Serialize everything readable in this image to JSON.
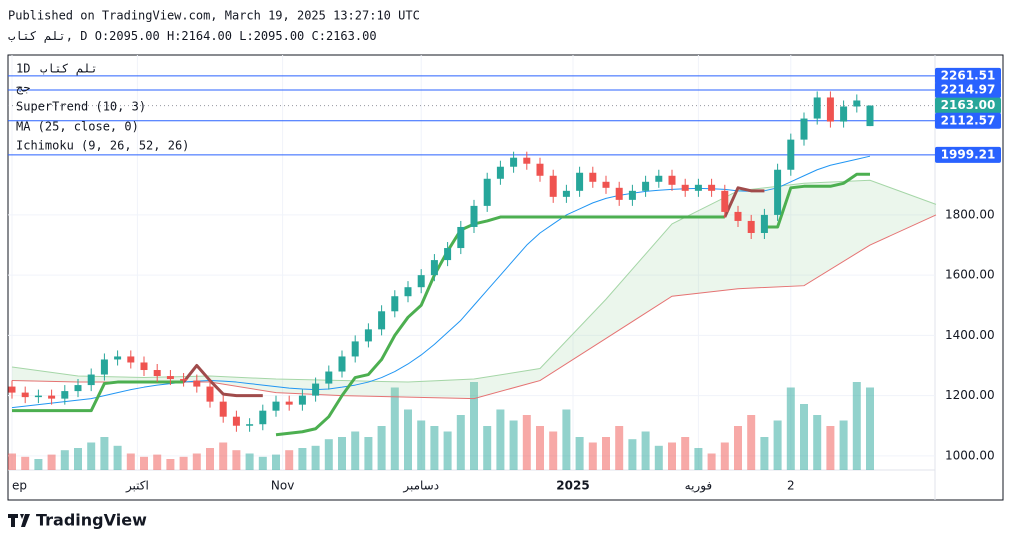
{
  "header": {
    "published": "Published on TradingView.com, March 19, 2025 13:27:10 UTC",
    "symbol": "تلم كتاب, D",
    "ohlc": [
      "O:2095.00",
      "H:2164.00",
      "L:2095.00",
      "C:2163.00"
    ]
  },
  "legend": {
    "interval": "1D",
    "symbol": "تلم كتاب",
    "exchange": "جج",
    "indicators": [
      "SuperTrend (10, 3)",
      "MA (25, close, 0)",
      "Ichimoku (9, 26, 52, 26)"
    ]
  },
  "footer": {
    "brand": "TradingView"
  },
  "chart_data": {
    "type": "candlestick",
    "open": [
      1230,
      1210,
      1195,
      1200,
      1190,
      1215,
      1235,
      1270,
      1320,
      1330,
      1310,
      1285,
      1265,
      1255,
      1250,
      1230,
      1180,
      1130,
      1100,
      1105,
      1150,
      1180,
      1170,
      1200,
      1240,
      1280,
      1330,
      1380,
      1420,
      1480,
      1530,
      1560,
      1600,
      1650,
      1690,
      1760,
      1830,
      1920,
      1960,
      1990,
      1970,
      1930,
      1860,
      1880,
      1940,
      1910,
      1890,
      1850,
      1880,
      1910,
      1930,
      1900,
      1880,
      1900,
      1880,
      1810,
      1780,
      1740,
      1800,
      1950,
      2050,
      2120,
      2190,
      2110,
      2160,
      2095
    ],
    "high": [
      1250,
      1230,
      1220,
      1220,
      1235,
      1255,
      1290,
      1340,
      1350,
      1350,
      1330,
      1305,
      1285,
      1275,
      1270,
      1250,
      1200,
      1150,
      1125,
      1170,
      1200,
      1200,
      1220,
      1260,
      1300,
      1350,
      1400,
      1440,
      1500,
      1550,
      1580,
      1620,
      1670,
      1710,
      1780,
      1850,
      1940,
      1980,
      2010,
      2010,
      1990,
      1950,
      1900,
      1960,
      1960,
      1930,
      1910,
      1900,
      1930,
      1950,
      1950,
      1920,
      1920,
      1920,
      1900,
      1830,
      1800,
      1820,
      1970,
      2070,
      2140,
      2210,
      2210,
      2180,
      2200,
      2164
    ],
    "low": [
      1190,
      1175,
      1175,
      1170,
      1170,
      1195,
      1215,
      1250,
      1300,
      1290,
      1265,
      1245,
      1235,
      1230,
      1210,
      1160,
      1110,
      1080,
      1080,
      1085,
      1130,
      1150,
      1150,
      1180,
      1220,
      1260,
      1310,
      1360,
      1400,
      1460,
      1510,
      1540,
      1580,
      1630,
      1670,
      1740,
      1810,
      1900,
      1940,
      1950,
      1910,
      1840,
      1840,
      1860,
      1890,
      1870,
      1830,
      1830,
      1860,
      1890,
      1880,
      1860,
      1860,
      1860,
      1790,
      1760,
      1720,
      1720,
      1780,
      1930,
      2030,
      2100,
      2090,
      2090,
      2140,
      2095
    ],
    "close": [
      1210,
      1195,
      1200,
      1190,
      1215,
      1235,
      1270,
      1320,
      1330,
      1310,
      1285,
      1265,
      1255,
      1250,
      1230,
      1180,
      1130,
      1100,
      1105,
      1150,
      1180,
      1170,
      1200,
      1240,
      1280,
      1330,
      1380,
      1420,
      1480,
      1530,
      1560,
      1600,
      1650,
      1690,
      1760,
      1830,
      1920,
      1960,
      1990,
      1970,
      1930,
      1860,
      1880,
      1940,
      1910,
      1890,
      1850,
      1880,
      1910,
      1930,
      1900,
      1880,
      1900,
      1880,
      1810,
      1780,
      1740,
      1800,
      1950,
      2050,
      2120,
      2190,
      2110,
      2160,
      2180,
      2163
    ],
    "volume": [
      15,
      12,
      10,
      14,
      18,
      20,
      25,
      30,
      22,
      15,
      12,
      14,
      10,
      12,
      15,
      20,
      25,
      18,
      15,
      12,
      14,
      18,
      20,
      22,
      28,
      30,
      35,
      30,
      40,
      75,
      55,
      45,
      40,
      35,
      50,
      80,
      40,
      55,
      45,
      50,
      40,
      35,
      55,
      30,
      25,
      30,
      40,
      28,
      35,
      22,
      25,
      30,
      20,
      15,
      25,
      40,
      50,
      30,
      45,
      75,
      60,
      50,
      40,
      45,
      80,
      75
    ],
    "ma": [
      1160,
      1165,
      1170,
      1175,
      1180,
      1185,
      1190,
      1200,
      1210,
      1220,
      1228,
      1235,
      1240,
      1245,
      1248,
      1250,
      1248,
      1245,
      1240,
      1235,
      1230,
      1225,
      1222,
      1220,
      1222,
      1228,
      1235,
      1245,
      1260,
      1280,
      1305,
      1335,
      1370,
      1410,
      1450,
      1500,
      1550,
      1600,
      1650,
      1700,
      1740,
      1770,
      1800,
      1820,
      1840,
      1855,
      1865,
      1872,
      1878,
      1882,
      1885,
      1887,
      1888,
      1887,
      1885,
      1880,
      1878,
      1880,
      1890,
      1910,
      1930,
      1950,
      1965,
      1975,
      1985,
      1995
    ],
    "supertrend_up": [
      1150,
      1150,
      1150,
      1150,
      1150,
      1150,
      1150,
      1240,
      1245,
      1245,
      1245,
      1245,
      1245,
      1245,
      null,
      null,
      null,
      null,
      null,
      null,
      1070,
      1075,
      1080,
      1090,
      1130,
      1200,
      1260,
      1270,
      1320,
      1400,
      1460,
      1500,
      1600,
      1680,
      1750,
      1770,
      1780,
      1793,
      1793,
      1793,
      1793,
      1793,
      1793,
      1793,
      1793,
      1793,
      1793,
      1793,
      1793,
      1793,
      1793,
      1793,
      1793,
      1793,
      1793,
      null,
      null,
      1760,
      1760,
      1890,
      1895,
      1895,
      1895,
      1905,
      1935,
      1935
    ],
    "supertrend_down": [
      null,
      null,
      null,
      null,
      null,
      null,
      null,
      null,
      null,
      null,
      null,
      null,
      null,
      1245,
      1300,
      1250,
      1205,
      1200,
      1200,
      1200,
      null,
      null,
      null,
      null,
      null,
      null,
      null,
      null,
      null,
      null,
      null,
      null,
      null,
      null,
      null,
      null,
      null,
      null,
      null,
      null,
      null,
      null,
      null,
      null,
      null,
      null,
      null,
      null,
      null,
      null,
      null,
      null,
      null,
      null,
      1793,
      1890,
      1880,
      1880,
      null,
      null,
      null,
      null,
      null,
      null,
      null,
      null
    ],
    "cloud_x": [
      0,
      5,
      10,
      15,
      20,
      25,
      30,
      35,
      40,
      45,
      50,
      55,
      60,
      65,
      70
    ],
    "span_a": [
      1295,
      1265,
      1260,
      1265,
      1255,
      1250,
      1245,
      1255,
      1290,
      1520,
      1770,
      1880,
      1905,
      1915,
      1835
    ],
    "span_b": [
      1250,
      1245,
      1245,
      1245,
      1210,
      1200,
      1195,
      1190,
      1250,
      1390,
      1530,
      1555,
      1565,
      1700,
      1800
    ],
    "colors": {
      "up": "#26a69a",
      "down": "#ef5350",
      "ma": "#2196f3",
      "supertrend_up": "#4caf50",
      "supertrend_down": "#a04b4b",
      "span_a": "#a5d6a7",
      "span_b": "#e57373",
      "price_line": "#2962ff",
      "last": "#26a69a"
    },
    "ylim": [
      953,
      2331
    ],
    "yticks": [
      {
        "value": 1000,
        "label": "1000.00"
      },
      {
        "value": 1200,
        "label": "1200.00"
      },
      {
        "value": 1400,
        "label": "1400.00"
      },
      {
        "value": 1600,
        "label": "1600.00"
      },
      {
        "value": 1800,
        "label": "1800.00"
      }
    ],
    "xticks": [
      {
        "value": 0,
        "label": "ep"
      },
      {
        "value": 9.5,
        "label": "اكتبر"
      },
      {
        "value": 20.5,
        "label": "Nov"
      },
      {
        "value": 31,
        "label": "دسامبر"
      },
      {
        "value": 42.5,
        "label": "2025"
      },
      {
        "value": 52,
        "label": "فوريه"
      },
      {
        "value": 59,
        "label": "2"
      }
    ],
    "price_lines": [
      {
        "value": 2261.51,
        "label": "2261.51"
      },
      {
        "value": 2214.97,
        "label": "2214.97"
      },
      {
        "value": 2163,
        "label": "2163.00",
        "last": true
      },
      {
        "value": 2112.57,
        "label": "2112.57"
      },
      {
        "value": 1999.21,
        "label": "1999.21"
      }
    ],
    "grid": true
  }
}
